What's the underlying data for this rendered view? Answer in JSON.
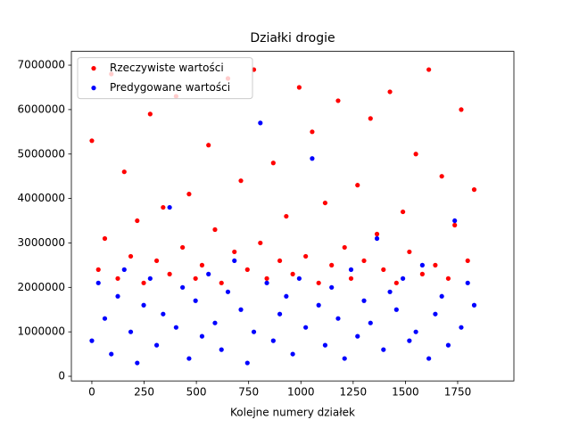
{
  "chart_data": {
    "type": "scatter",
    "title": "Działki drogie",
    "x_label": "Kolejne numery działek",
    "x": [
      0,
      31,
      62,
      93,
      124,
      155,
      186,
      217,
      248,
      279,
      310,
      341,
      372,
      403,
      434,
      465,
      496,
      527,
      558,
      589,
      620,
      651,
      682,
      713,
      744,
      775,
      806,
      837,
      868,
      899,
      930,
      961,
      992,
      1023,
      1054,
      1085,
      1116,
      1147,
      1178,
      1209,
      1240,
      1271,
      1302,
      1333,
      1364,
      1395,
      1426,
      1457,
      1488,
      1519,
      1550,
      1581,
      1612,
      1643,
      1674,
      1705,
      1736,
      1767,
      1798,
      1829
    ],
    "series": [
      {
        "name": "Rzeczywiste wartości",
        "color": "#ff0000",
        "values": [
          5300000,
          2400000,
          3100000,
          6800000,
          2200000,
          4600000,
          2700000,
          3500000,
          2100000,
          5900000,
          2600000,
          3800000,
          2300000,
          6300000,
          2900000,
          4100000,
          2200000,
          2500000,
          5200000,
          3300000,
          2100000,
          6700000,
          2800000,
          4400000,
          2400000,
          6900000,
          3000000,
          2200000,
          4800000,
          2600000,
          3600000,
          2300000,
          6500000,
          2700000,
          5500000,
          2100000,
          3900000,
          2500000,
          6200000,
          2900000,
          2200000,
          4300000,
          2600000,
          5800000,
          3200000,
          2400000,
          6400000,
          2100000,
          3700000,
          2800000,
          5000000,
          2300000,
          6900000,
          2500000,
          4500000,
          2200000,
          3400000,
          6000000,
          2600000,
          4200000
        ]
      },
      {
        "name": "Predygowane wartości",
        "color": "#0000ff",
        "values": [
          800000,
          2100000,
          1300000,
          500000,
          1800000,
          2400000,
          1000000,
          300000,
          1600000,
          2200000,
          700000,
          1400000,
          3800000,
          1100000,
          2000000,
          400000,
          1700000,
          900000,
          2300000,
          1200000,
          600000,
          1900000,
          2600000,
          1500000,
          300000,
          1000000,
          5700000,
          2100000,
          800000,
          1400000,
          1800000,
          500000,
          2200000,
          1100000,
          4900000,
          1600000,
          700000,
          2000000,
          1300000,
          400000,
          2400000,
          900000,
          1700000,
          1200000,
          3100000,
          600000,
          1900000,
          1500000,
          2200000,
          800000,
          1000000,
          2500000,
          400000,
          1400000,
          1800000,
          700000,
          3500000,
          1100000,
          2100000,
          1600000
        ]
      }
    ],
    "xlim": [
      -98,
      2019
    ],
    "ylim": [
      -104000,
      7310000
    ],
    "xticks": [
      0,
      250,
      500,
      750,
      1000,
      1250,
      1500,
      1750
    ],
    "yticks": [
      0,
      1000000,
      2000000,
      3000000,
      4000000,
      5000000,
      6000000,
      7000000
    ],
    "legend": "upper left"
  }
}
